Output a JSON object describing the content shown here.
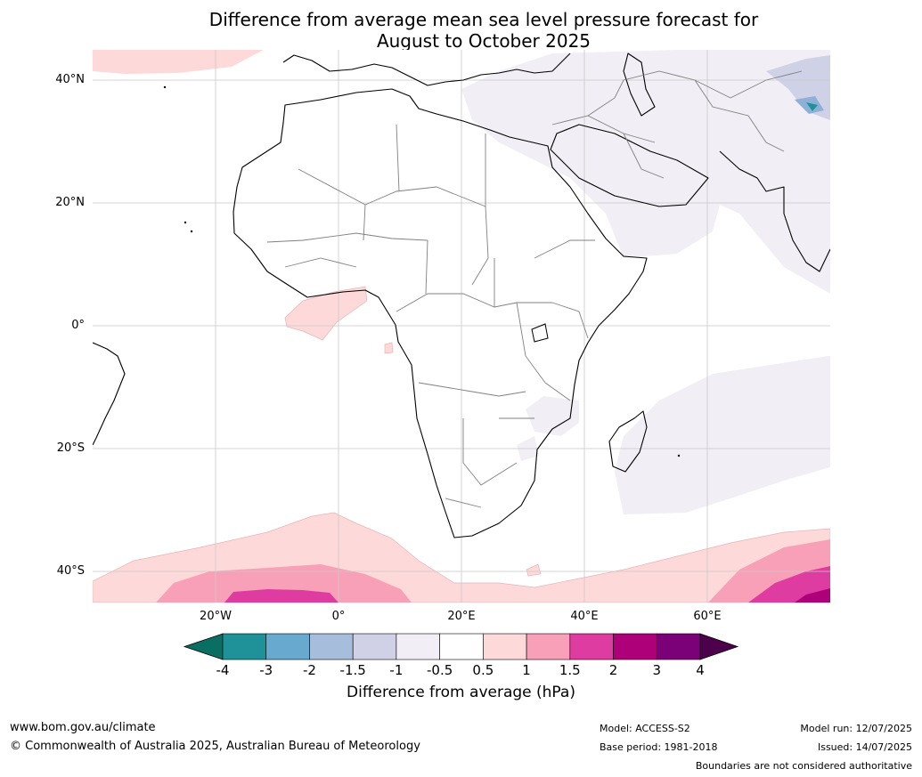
{
  "title": {
    "line1": "Difference from average mean sea level pressure forecast for",
    "line2": "August to October 2025"
  },
  "map": {
    "lat_labels": [
      "40°N",
      "20°N",
      "0°",
      "20°S",
      "40°S"
    ],
    "lon_labels": [
      "20°W",
      "0°",
      "20°E",
      "40°E",
      "60°E"
    ],
    "extent": {
      "lon_min": -40,
      "lon_max": 80,
      "lat_min": -45,
      "lat_max": 45
    }
  },
  "colorbar": {
    "ticks": [
      "-4",
      "-3",
      "-2",
      "-1.5",
      "-1",
      "-0.5",
      "0.5",
      "1",
      "1.5",
      "2",
      "3",
      "4"
    ],
    "colors": {
      "below": "#0b6e63",
      "bins": [
        "#1e9298",
        "#67a9cf",
        "#a6bddb",
        "#d0d1e6",
        "#f2eef6",
        "#ffffff",
        "#fdd9d9",
        "#f9a0b9",
        "#df3ca1",
        "#ae0179",
        "#7a0177"
      ],
      "above": "#4d004b"
    },
    "label": "Difference from average (hPa)"
  },
  "footer": {
    "website": "www.bom.gov.au/climate",
    "copyright": "© Commonwealth of Australia 2025, Australian Bureau of Meteorology",
    "model": "Model: ACCESS-S2",
    "base_period": "Base period: 1981-2018",
    "model_run": "Model run: 12/07/2025",
    "issued": "Issued: 14/07/2025",
    "disclaimer": "Boundaries are not considered authoritative"
  }
}
